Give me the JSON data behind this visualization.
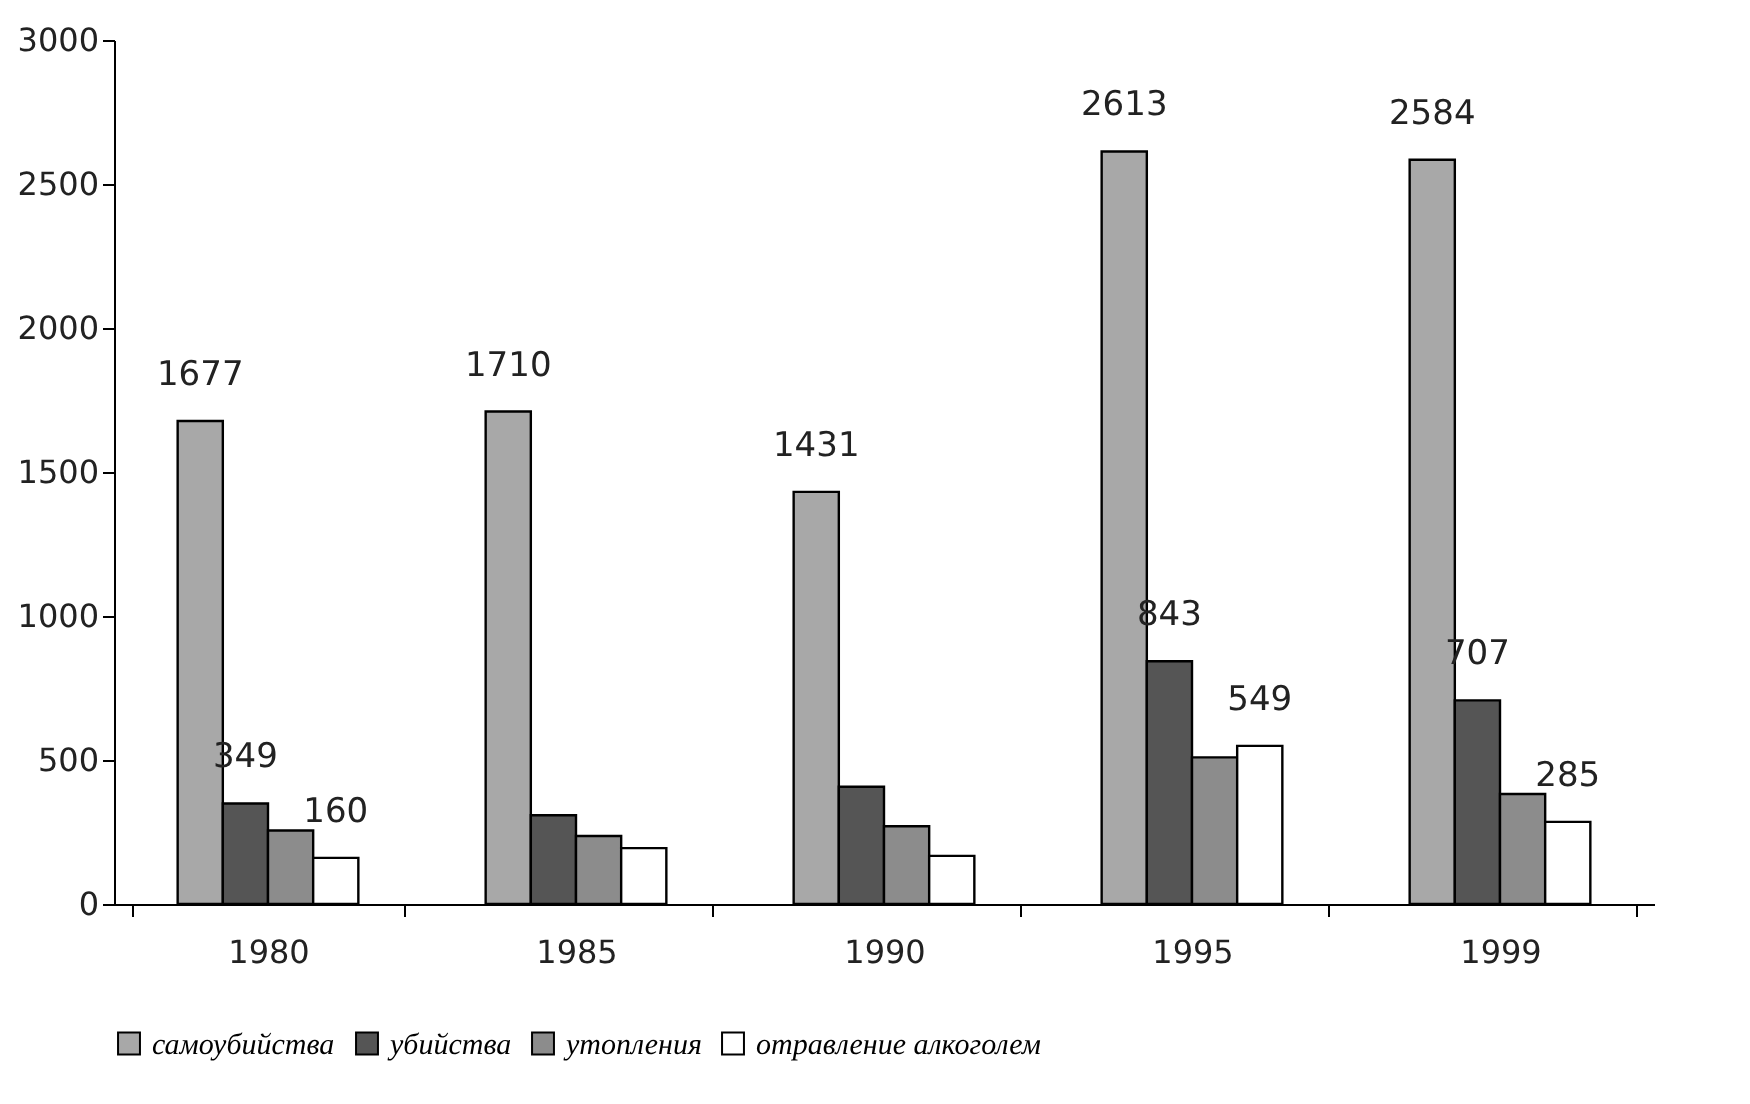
{
  "chart_data": {
    "type": "bar",
    "categories": [
      "1980",
      "1985",
      "1990",
      "1995",
      "1999"
    ],
    "series": [
      {
        "name": "самоубийства",
        "color": "#a8a8a8",
        "values": [
          1677,
          1710,
          1431,
          2613,
          2584
        ],
        "value_labels": [
          "1677",
          "1710",
          "1431",
          "2613",
          "2584"
        ]
      },
      {
        "name": "убийства",
        "color": "#555555",
        "values": [
          349,
          308,
          407,
          843,
          707
        ],
        "value_labels": [
          "349",
          null,
          null,
          "843",
          "707"
        ]
      },
      {
        "name": "утопления",
        "color": "#8c8c8c",
        "values": [
          255,
          236,
          270,
          509,
          382
        ]
      },
      {
        "name": "отравление алкоголем",
        "color": "#ffffff",
        "values": [
          160,
          194,
          167,
          549,
          285
        ],
        "value_labels": [
          "160",
          null,
          null,
          "549",
          "285"
        ]
      }
    ],
    "ylim": [
      0,
      3000
    ],
    "yticks": [
      0,
      500,
      1000,
      1500,
      2000,
      2500,
      3000
    ],
    "grid": false,
    "legend": "bottom"
  }
}
